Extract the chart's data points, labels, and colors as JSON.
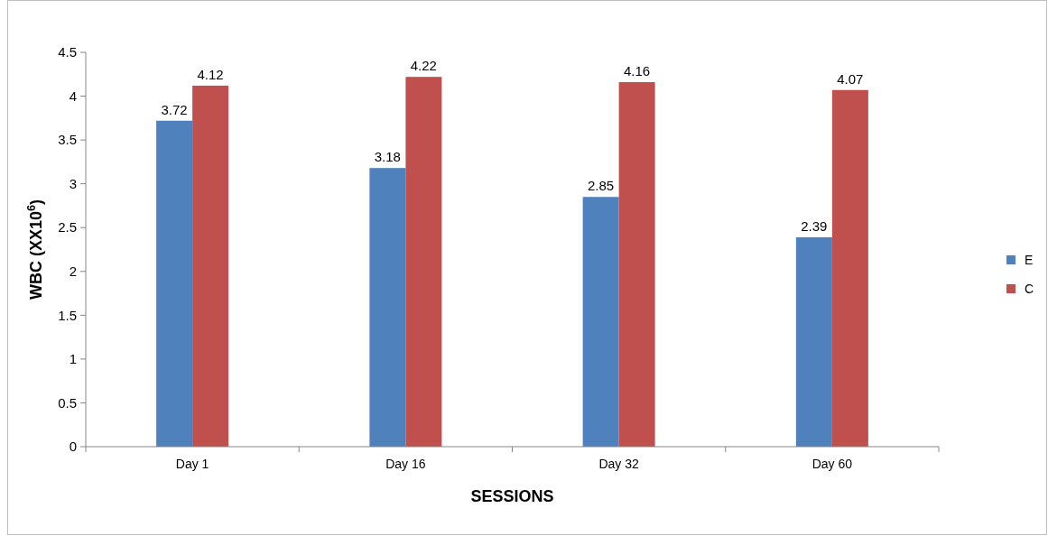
{
  "chart_data": {
    "type": "bar",
    "xlabel": "SESSIONS",
    "ylabel": "WBC (XX10$^{6}$)",
    "categories": [
      "Day 1",
      "Day 16",
      "Day 32",
      "Day 60"
    ],
    "series": [
      {
        "name": "E",
        "color": "#4f81bd",
        "values": [
          3.72,
          3.18,
          2.85,
          2.39
        ]
      },
      {
        "name": "C",
        "color": "#c0504d",
        "values": [
          4.12,
          4.22,
          4.16,
          4.07
        ]
      }
    ],
    "ylim": [
      0,
      4.5
    ],
    "yticks": [
      0,
      0.5,
      1,
      1.5,
      2,
      2.5,
      3,
      3.5,
      4,
      4.5
    ],
    "grid": false,
    "legend": "right",
    "data_labels": true
  }
}
